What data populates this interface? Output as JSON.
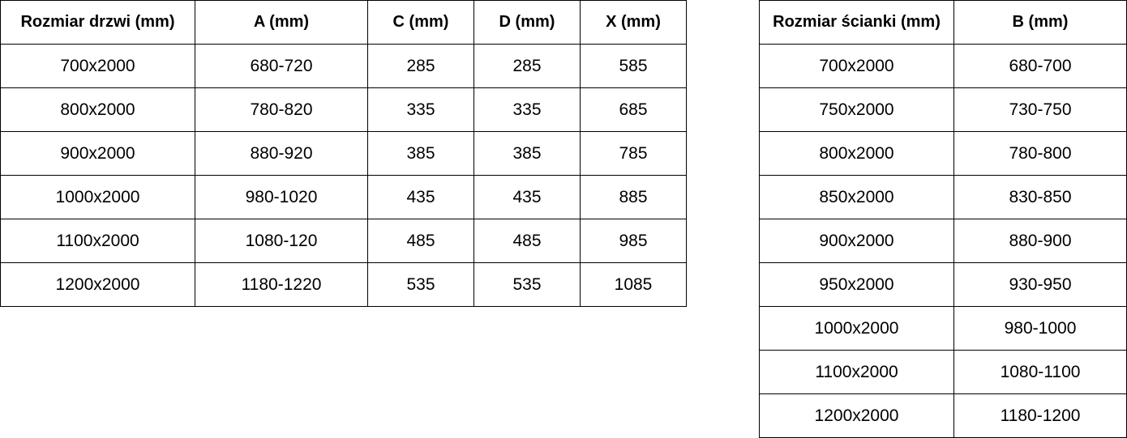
{
  "door_table": {
    "headers": [
      "Rozmiar drzwi (mm)",
      "A (mm)",
      "C (mm)",
      "D (mm)",
      "X (mm)"
    ],
    "rows": [
      [
        "700x2000",
        "680-720",
        "285",
        "285",
        "585"
      ],
      [
        "800x2000",
        "780-820",
        "335",
        "335",
        "685"
      ],
      [
        "900x2000",
        "880-920",
        "385",
        "385",
        "785"
      ],
      [
        "1000x2000",
        "980-1020",
        "435",
        "435",
        "885"
      ],
      [
        "1100x2000",
        "1080-120",
        "485",
        "485",
        "985"
      ],
      [
        "1200x2000",
        "1180-1220",
        "535",
        "535",
        "1085"
      ]
    ]
  },
  "wall_table": {
    "headers": [
      "Rozmiar ścianki (mm)",
      "B (mm)"
    ],
    "rows": [
      [
        "700x2000",
        "680-700"
      ],
      [
        "750x2000",
        "730-750"
      ],
      [
        "800x2000",
        "780-800"
      ],
      [
        "850x2000",
        "830-850"
      ],
      [
        "900x2000",
        "880-900"
      ],
      [
        "950x2000",
        "930-950"
      ],
      [
        "1000x2000",
        "980-1000"
      ],
      [
        "1100x2000",
        "1080-1100"
      ],
      [
        "1200x2000",
        "1180-1200"
      ]
    ]
  }
}
